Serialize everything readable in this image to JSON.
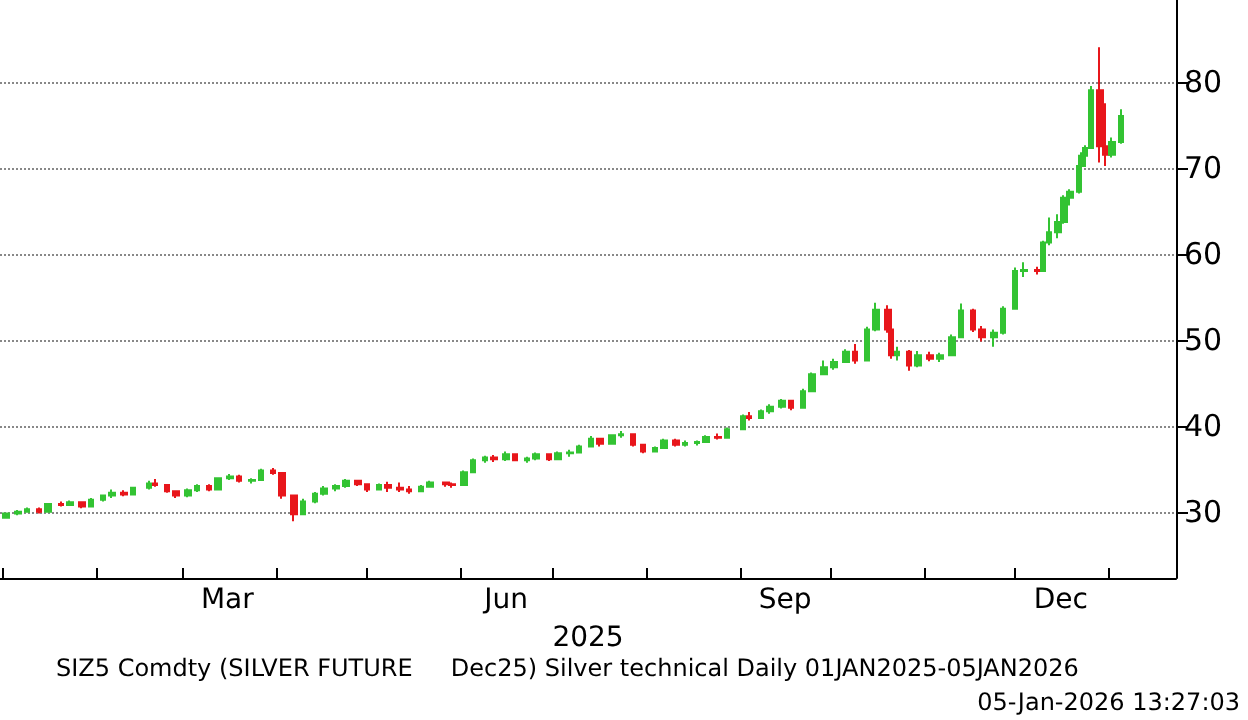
{
  "chart_data": {
    "type": "candlestick",
    "xlabel": "2025",
    "annotations": [
      "SIZ5 Comdty (SILVER FUTURE     Dec25) Silver technical Daily 01JAN2025-05JAN2026",
      "05-Jan-2026 13:27:03"
    ],
    "colors": [
      "#33c333",
      "#33c333",
      "#33c333",
      "#e8161b",
      "#33c333",
      "#e8161b",
      "#33c333",
      "#e8161b",
      "#33c333",
      "#33c333",
      "#33c333",
      "#e8161b",
      "#33c333",
      "#33c333",
      "#e8161b",
      "#e8161b",
      "#e8161b",
      "#33c333",
      "#33c333",
      "#e8161b",
      "#33c333",
      "#33c333",
      "#e8161b",
      "#33c333",
      "#33c333",
      "#e8161b",
      "#e8161b",
      "#e8161b",
      "#33c333",
      "#33c333",
      "#33c333",
      "#33c333",
      "#33c333",
      "#e8161b",
      "#e8161b",
      "#33c333",
      "#e8161b",
      "#e8161b",
      "#e8161b",
      "#33c333",
      "#33c333",
      "#e8161b",
      "#e8161b",
      "#33c333",
      "#33c333",
      "#33c333",
      "#e8161b",
      "#33c333",
      "#e8161b",
      "#33c333",
      "#33c333",
      "#e8161b",
      "#33c333",
      "#33c333",
      "#33c333",
      "#33c333",
      "#e8161b",
      "#33c333",
      "#33c333",
      "#e8161b",
      "#e8161b",
      "#33c333",
      "#33c333",
      "#e8161b",
      "#33c333",
      "#33c333",
      "#33c333",
      "#e8161b",
      "#33c333",
      "#33c333",
      "#e8161b",
      "#33c333",
      "#33c333",
      "#33c333",
      "#e8161b",
      "#33c333",
      "#33c333",
      "#33c333",
      "#33c333",
      "#33c333",
      "#e8161b",
      "#33c333",
      "#33c333",
      "#e8161b",
      "#e8161b",
      "#33c333",
      "#e8161b",
      "#33c333",
      "#e8161b",
      "#33c333",
      "#33c333",
      "#33c333",
      "#e8161b",
      "#e8161b",
      "#33c333",
      "#33c333",
      "#33c333",
      "#33c333",
      "#e8161b",
      "#33c333",
      "#33c333",
      "#33c333",
      "#33c333",
      "#33c333",
      "#33c333",
      "#33c333",
      "#33c333",
      "#33c333",
      "#e8161b",
      "#e8161b",
      "#33c333",
      "#33c333"
    ],
    "x": [
      "2025-01-02",
      "2025-01-06",
      "2025-01-09",
      "2025-01-13",
      "2025-01-16",
      "2025-01-20",
      "2025-01-23",
      "2025-01-27",
      "2025-01-30",
      "2025-02-03",
      "2025-02-06",
      "2025-02-10",
      "2025-02-13",
      "2025-02-18",
      "2025-02-20",
      "2025-02-24",
      "2025-02-27",
      "2025-03-03",
      "2025-03-06",
      "2025-03-10",
      "2025-03-13",
      "2025-03-17",
      "2025-03-20",
      "2025-03-24",
      "2025-03-27",
      "2025-03-31",
      "2025-04-03",
      "2025-04-07",
      "2025-04-10",
      "2025-04-14",
      "2025-04-17",
      "2025-04-21",
      "2025-04-24",
      "2025-04-28",
      "2025-05-01",
      "2025-05-05",
      "2025-05-08",
      "2025-05-12",
      "2025-05-15",
      "2025-05-19",
      "2025-05-22",
      "2025-05-27",
      "2025-05-29",
      "2025-06-02",
      "2025-06-05",
      "2025-06-09",
      "2025-06-12",
      "2025-06-16",
      "2025-06-19",
      "2025-06-23",
      "2025-06-26",
      "2025-06-30",
      "2025-07-03",
      "2025-07-07",
      "2025-07-10",
      "2025-07-14",
      "2025-07-17",
      "2025-07-21",
      "2025-07-24",
      "2025-07-28",
      "2025-07-31",
      "2025-08-04",
      "2025-08-07",
      "2025-08-11",
      "2025-08-14",
      "2025-08-18",
      "2025-08-21",
      "2025-08-25",
      "2025-08-28",
      "2025-09-02",
      "2025-09-04",
      "2025-09-08",
      "2025-09-11",
      "2025-09-15",
      "2025-09-18",
      "2025-09-22",
      "2025-09-25",
      "2025-09-29",
      "2025-10-02",
      "2025-10-06",
      "2025-10-09",
      "2025-10-13",
      "2025-10-16",
      "2025-10-20",
      "2025-10-21",
      "2025-10-23",
      "2025-10-27",
      "2025-10-30",
      "2025-11-03",
      "2025-11-06",
      "2025-11-10",
      "2025-11-13",
      "2025-11-17",
      "2025-11-20",
      "2025-11-24",
      "2025-11-27",
      "2025-12-01",
      "2025-12-04",
      "2025-12-08",
      "2025-12-10",
      "2025-12-12",
      "2025-12-15",
      "2025-12-17",
      "2025-12-19",
      "2025-12-22",
      "2025-12-23",
      "2025-12-24",
      "2025-12-26",
      "2025-12-29",
      "2025-12-31",
      "2026-01-02",
      "2026-01-05"
    ],
    "ohlc": [
      [
        29.3,
        29.9,
        29.2,
        29.8
      ],
      [
        29.8,
        30.2,
        29.6,
        30.0
      ],
      [
        30.0,
        30.5,
        29.9,
        30.3
      ],
      [
        30.3,
        30.5,
        29.8,
        30.0
      ],
      [
        30.0,
        31.0,
        29.9,
        30.9
      ],
      [
        30.9,
        31.2,
        30.6,
        30.8
      ],
      [
        30.8,
        31.3,
        30.7,
        31.1
      ],
      [
        31.1,
        31.2,
        30.4,
        30.6
      ],
      [
        30.6,
        31.6,
        30.5,
        31.4
      ],
      [
        31.4,
        32.0,
        31.2,
        31.9
      ],
      [
        31.9,
        32.6,
        31.6,
        32.2
      ],
      [
        32.2,
        32.5,
        31.8,
        32.0
      ],
      [
        32.0,
        32.9,
        31.9,
        32.8
      ],
      [
        32.8,
        33.6,
        32.6,
        33.3
      ],
      [
        33.3,
        33.8,
        32.9,
        33.1
      ],
      [
        33.1,
        33.2,
        32.2,
        32.4
      ],
      [
        32.4,
        32.5,
        31.6,
        31.9
      ],
      [
        31.9,
        32.7,
        31.7,
        32.5
      ],
      [
        32.5,
        33.2,
        32.3,
        33.0
      ],
      [
        33.0,
        33.2,
        32.4,
        32.6
      ],
      [
        32.6,
        34.0,
        32.5,
        33.9
      ],
      [
        33.9,
        34.4,
        33.7,
        34.1
      ],
      [
        34.1,
        34.3,
        33.4,
        33.6
      ],
      [
        33.6,
        33.9,
        33.3,
        33.7
      ],
      [
        33.7,
        35.0,
        33.6,
        34.8
      ],
      [
        34.8,
        35.1,
        34.3,
        34.5
      ],
      [
        34.5,
        34.6,
        31.5,
        31.9
      ],
      [
        31.9,
        32.0,
        28.9,
        29.7
      ],
      [
        29.7,
        31.5,
        29.6,
        31.2
      ],
      [
        31.2,
        32.3,
        31.0,
        32.1
      ],
      [
        32.1,
        33.0,
        31.9,
        32.7
      ],
      [
        32.7,
        33.2,
        32.4,
        33.0
      ],
      [
        33.0,
        33.8,
        32.8,
        33.6
      ],
      [
        33.6,
        33.7,
        33.0,
        33.2
      ],
      [
        33.2,
        33.3,
        32.3,
        32.6
      ],
      [
        32.6,
        33.3,
        32.5,
        33.1
      ],
      [
        33.1,
        33.5,
        32.3,
        32.8
      ],
      [
        32.8,
        33.4,
        32.3,
        32.6
      ],
      [
        32.6,
        33.0,
        32.1,
        32.4
      ],
      [
        32.4,
        33.1,
        32.3,
        32.9
      ],
      [
        32.9,
        33.6,
        32.8,
        33.4
      ],
      [
        33.4,
        33.5,
        32.9,
        33.2
      ],
      [
        33.2,
        33.4,
        32.8,
        33.1
      ],
      [
        33.1,
        34.8,
        33.0,
        34.6
      ],
      [
        34.6,
        36.2,
        34.5,
        36.0
      ],
      [
        36.0,
        36.5,
        35.7,
        36.3
      ],
      [
        36.3,
        36.6,
        35.8,
        36.1
      ],
      [
        36.1,
        37.0,
        35.9,
        36.7
      ],
      [
        36.7,
        36.8,
        35.9,
        36.0
      ],
      [
        36.0,
        36.4,
        35.7,
        36.2
      ],
      [
        36.2,
        36.9,
        36.0,
        36.7
      ],
      [
        36.7,
        36.8,
        35.9,
        36.1
      ],
      [
        36.1,
        37.0,
        36.0,
        36.8
      ],
      [
        36.8,
        37.2,
        36.4,
        36.9
      ],
      [
        36.9,
        37.8,
        36.8,
        37.6
      ],
      [
        37.6,
        38.8,
        37.5,
        38.5
      ],
      [
        38.5,
        38.6,
        37.6,
        37.9
      ],
      [
        37.9,
        39.0,
        37.8,
        38.9
      ],
      [
        38.9,
        39.4,
        38.6,
        39.0
      ],
      [
        39.0,
        39.1,
        37.6,
        37.8
      ],
      [
        37.8,
        37.9,
        36.8,
        37.0
      ],
      [
        37.0,
        37.6,
        36.9,
        37.4
      ],
      [
        37.4,
        38.5,
        37.3,
        38.3
      ],
      [
        38.3,
        38.5,
        37.6,
        37.8
      ],
      [
        37.8,
        38.3,
        37.6,
        38.0
      ],
      [
        38.0,
        38.3,
        37.7,
        38.1
      ],
      [
        38.1,
        38.9,
        38.0,
        38.7
      ],
      [
        38.7,
        39.1,
        38.4,
        38.6
      ],
      [
        38.6,
        39.8,
        38.5,
        39.6
      ],
      [
        39.6,
        41.3,
        39.5,
        41.1
      ],
      [
        41.1,
        41.6,
        40.6,
        40.9
      ],
      [
        40.9,
        41.9,
        40.8,
        41.7
      ],
      [
        41.7,
        42.5,
        41.4,
        42.2
      ],
      [
        42.2,
        43.1,
        42.0,
        42.9
      ],
      [
        42.9,
        43.0,
        41.8,
        42.1
      ],
      [
        42.1,
        44.3,
        42.0,
        44.0
      ],
      [
        44.0,
        46.2,
        43.9,
        46.0
      ],
      [
        46.0,
        47.6,
        45.9,
        46.8
      ],
      [
        46.8,
        47.8,
        46.5,
        47.4
      ],
      [
        47.4,
        48.9,
        47.3,
        48.6
      ],
      [
        48.6,
        49.5,
        47.2,
        47.6
      ],
      [
        47.6,
        51.5,
        47.5,
        51.2
      ],
      [
        51.2,
        54.3,
        51.0,
        53.5
      ],
      [
        53.5,
        54.0,
        50.8,
        51.2
      ],
      [
        51.2,
        51.5,
        47.8,
        48.2
      ],
      [
        48.2,
        49.2,
        47.6,
        48.6
      ],
      [
        48.6,
        48.8,
        46.4,
        47.0
      ],
      [
        47.0,
        48.7,
        46.8,
        48.2
      ],
      [
        48.2,
        48.6,
        47.5,
        47.8
      ],
      [
        47.8,
        48.5,
        47.4,
        48.2
      ],
      [
        48.2,
        50.6,
        48.1,
        50.3
      ],
      [
        50.3,
        54.2,
        50.2,
        53.4
      ],
      [
        53.4,
        53.6,
        50.9,
        51.2
      ],
      [
        51.2,
        51.6,
        49.8,
        50.3
      ],
      [
        50.3,
        51.2,
        49.2,
        50.8
      ],
      [
        50.8,
        53.9,
        50.6,
        53.6
      ],
      [
        53.6,
        58.4,
        53.5,
        58.0
      ],
      [
        58.0,
        59.0,
        57.3,
        58.1
      ],
      [
        58.1,
        58.5,
        57.6,
        58.0
      ],
      [
        58.0,
        61.5,
        57.9,
        61.3
      ],
      [
        61.3,
        64.2,
        61.0,
        62.5
      ],
      [
        62.5,
        64.6,
        61.8,
        63.7
      ],
      [
        63.7,
        66.8,
        63.5,
        66.5
      ],
      [
        66.5,
        67.5,
        65.6,
        67.2
      ],
      [
        67.2,
        70.5,
        67.0,
        70.2
      ],
      [
        70.2,
        71.8,
        69.8,
        71.4
      ],
      [
        71.4,
        72.6,
        71.0,
        72.3
      ],
      [
        72.3,
        79.5,
        72.2,
        79.0
      ],
      [
        79.0,
        84.0,
        70.6,
        72.5
      ],
      [
        72.5,
        77.5,
        70.2,
        71.5
      ],
      [
        71.5,
        73.5,
        71.2,
        73.0
      ],
      [
        73.0,
        76.8,
        72.8,
        76.0
      ]
    ],
    "xlim": [
      "2024-12-31",
      "2026-01-23"
    ],
    "xticks": [
      {
        "value": "2025-01-01",
        "label": null
      },
      {
        "value": "2025-02-01",
        "label": null
      },
      {
        "value": "2025-03-01",
        "label": null
      },
      {
        "value": "2025-03-16",
        "label": "Mar"
      },
      {
        "value": "2025-04-01",
        "label": null
      },
      {
        "value": "2025-05-01",
        "label": null
      },
      {
        "value": "2025-06-01",
        "label": null
      },
      {
        "value": "2025-06-16",
        "label": "Jun"
      },
      {
        "value": "2025-07-01",
        "label": null
      },
      {
        "value": "2025-08-01",
        "label": null
      },
      {
        "value": "2025-09-01",
        "label": null
      },
      {
        "value": "2025-09-16",
        "label": "Sep"
      },
      {
        "value": "2025-10-01",
        "label": null
      },
      {
        "value": "2025-11-01",
        "label": null
      },
      {
        "value": "2025-12-01",
        "label": null
      },
      {
        "value": "2025-12-16",
        "label": "Dec"
      },
      {
        "value": "2026-01-01",
        "label": null
      }
    ],
    "ylim": [
      22.3,
      89.5
    ],
    "yticks": [
      30,
      40,
      50,
      60,
      70,
      80
    ],
    "grid": "y",
    "line_style": "dotted"
  }
}
